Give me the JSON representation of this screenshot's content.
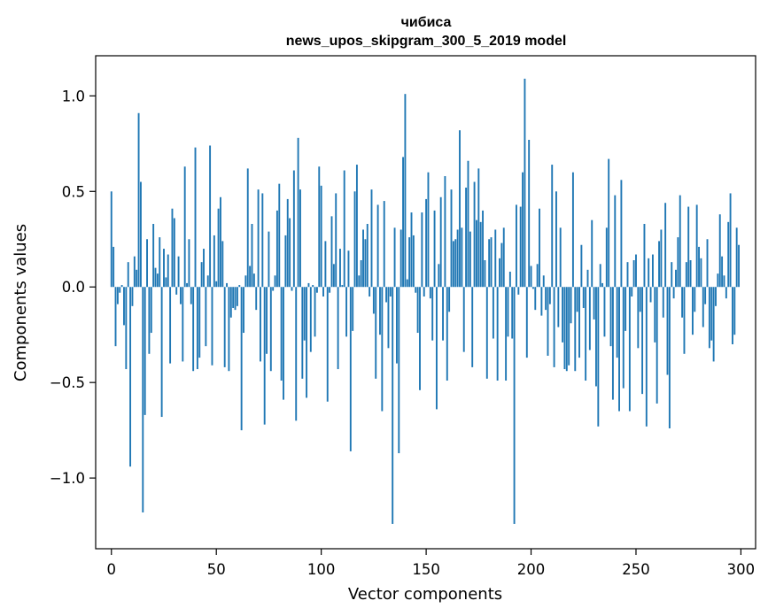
{
  "chart_data": {
    "type": "bar",
    "title": "чибиса",
    "subtitle": "news_upos_skipgram_300_5_2019 model",
    "xlabel": "Vector components",
    "ylabel": "Components values",
    "xlim": [
      -7.5,
      307
    ],
    "ylim": [
      -1.37,
      1.21
    ],
    "xticks": [
      0,
      50,
      100,
      150,
      200,
      250,
      300
    ],
    "yticks": [
      -1.0,
      -0.5,
      0.0,
      0.5,
      1.0
    ],
    "ytick_labels": [
      "−1.0",
      "−0.5",
      "0.0",
      "0.5",
      "1.0"
    ],
    "grid": false,
    "bar_color": "#1f77b4",
    "values": [
      0.5,
      0.21,
      -0.31,
      -0.09,
      -0.03,
      0.01,
      -0.2,
      -0.43,
      0.13,
      -0.94,
      -0.1,
      0.16,
      0.09,
      0.91,
      0.55,
      -1.18,
      -0.67,
      0.25,
      -0.35,
      -0.24,
      0.33,
      0.1,
      0.07,
      0.26,
      -0.68,
      0.2,
      0.05,
      0.17,
      -0.4,
      0.41,
      0.36,
      -0.04,
      0.16,
      -0.09,
      -0.39,
      0.63,
      0.02,
      0.25,
      -0.09,
      -0.44,
      0.73,
      -0.43,
      -0.37,
      0.13,
      0.2,
      -0.31,
      0.06,
      0.74,
      -0.41,
      0.27,
      0.03,
      0.41,
      0.47,
      0.24,
      -0.42,
      0.02,
      -0.44,
      -0.16,
      -0.11,
      -0.12,
      -0.1,
      0.01,
      -0.75,
      -0.24,
      0.06,
      0.62,
      0.11,
      0.33,
      0.07,
      -0.12,
      0.51,
      -0.39,
      0.49,
      -0.72,
      -0.35,
      0.29,
      -0.44,
      -0.02,
      0.06,
      0.4,
      0.54,
      -0.49,
      -0.59,
      0.27,
      0.46,
      0.36,
      -0.02,
      0.61,
      -0.7,
      0.78,
      0.51,
      -0.48,
      -0.28,
      -0.58,
      0.02,
      -0.34,
      0.01,
      -0.26,
      -0.03,
      0.63,
      0.53,
      -0.05,
      0.24,
      -0.6,
      -0.03,
      0.37,
      0.12,
      0.49,
      -0.43,
      0.2,
      0.01,
      0.61,
      -0.26,
      0.19,
      -0.86,
      -0.23,
      0.5,
      0.64,
      0.06,
      0.14,
      0.3,
      0.25,
      0.33,
      -0.05,
      0.51,
      -0.14,
      -0.48,
      0.43,
      -0.25,
      -0.65,
      0.45,
      -0.08,
      -0.32,
      -0.05,
      -1.24,
      0.31,
      -0.4,
      -0.87,
      0.3,
      0.68,
      1.01,
      0.04,
      0.26,
      0.39,
      0.27,
      -0.03,
      -0.24,
      -0.54,
      0.39,
      -0.05,
      0.46,
      0.6,
      -0.06,
      -0.28,
      0.4,
      -0.64,
      0.12,
      0.47,
      -0.28,
      0.58,
      -0.49,
      -0.13,
      0.51,
      0.24,
      0.25,
      0.3,
      0.82,
      0.31,
      -0.34,
      0.52,
      0.66,
      0.29,
      -0.42,
      0.55,
      0.35,
      0.62,
      0.34,
      0.4,
      0.14,
      -0.48,
      0.25,
      0.26,
      -0.27,
      0.3,
      -0.49,
      0.15,
      0.23,
      0.31,
      -0.49,
      -0.26,
      0.08,
      -0.27,
      -1.24,
      0.43,
      -0.04,
      0.42,
      0.6,
      1.09,
      -0.37,
      0.77,
      0.11,
      -0.01,
      -0.12,
      0.12,
      0.41,
      -0.15,
      0.06,
      -0.12,
      -0.36,
      -0.09,
      0.64,
      -0.42,
      0.5,
      -0.21,
      0.31,
      -0.29,
      -0.43,
      -0.44,
      -0.41,
      -0.19,
      0.6,
      -0.44,
      -0.13,
      -0.37,
      0.22,
      -0.11,
      -0.49,
      0.09,
      -0.33,
      0.35,
      -0.17,
      -0.52,
      -0.73,
      0.12,
      0.02,
      -0.26,
      0.31,
      0.67,
      -0.31,
      -0.59,
      0.48,
      -0.37,
      -0.65,
      0.56,
      -0.53,
      -0.23,
      0.13,
      -0.65,
      -0.05,
      0.14,
      0.17,
      -0.32,
      -0.13,
      -0.56,
      0.33,
      -0.73,
      0.15,
      -0.08,
      0.17,
      -0.29,
      -0.61,
      0.24,
      0.3,
      -0.16,
      0.44,
      -0.46,
      -0.74,
      0.13,
      -0.06,
      0.09,
      0.26,
      0.48,
      -0.16,
      -0.35,
      0.13,
      0.42,
      0.14,
      -0.25,
      -0.13,
      0.43,
      0.21,
      0.15,
      -0.21,
      -0.09,
      0.25,
      -0.32,
      -0.28,
      -0.39,
      -0.1,
      0.07,
      0.38,
      0.16,
      0.06,
      -0.06,
      0.34,
      0.49,
      -0.3,
      -0.25,
      0.31,
      0.22
    ]
  }
}
